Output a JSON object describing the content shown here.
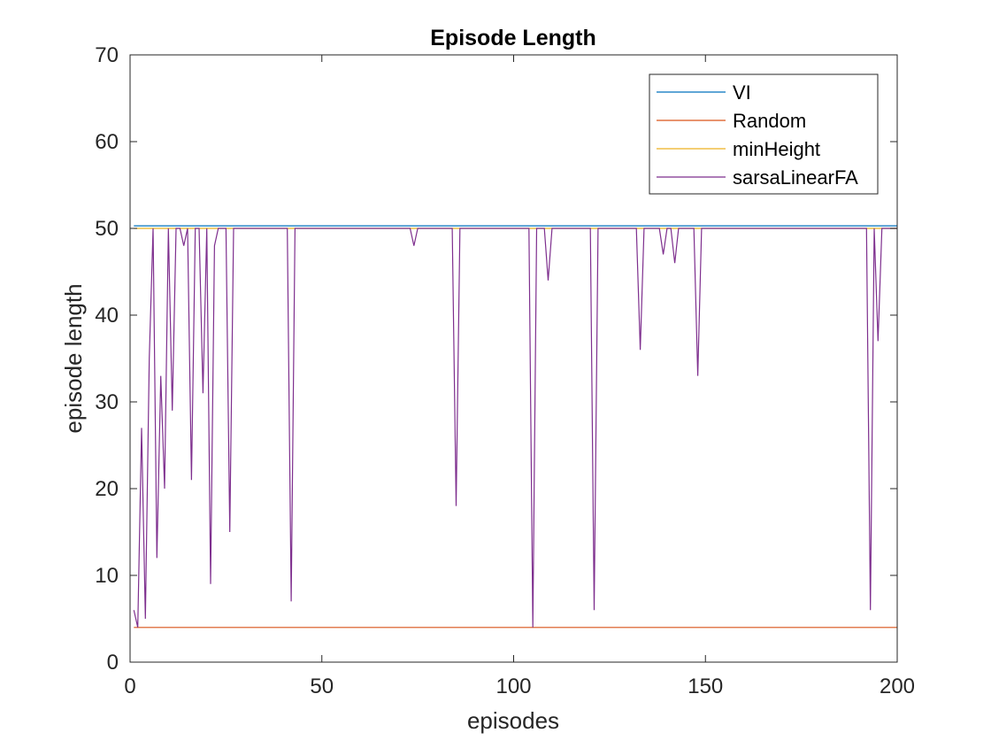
{
  "chart_data": {
    "type": "line",
    "title": "Episode Length",
    "xlabel": "episodes",
    "ylabel": "episode length",
    "xlim": [
      0,
      200
    ],
    "ylim": [
      0,
      70
    ],
    "xticks": [
      0,
      50,
      100,
      150,
      200
    ],
    "yticks": [
      0,
      10,
      20,
      30,
      40,
      50,
      60,
      70
    ],
    "grid": false,
    "legend_position": "top-right",
    "series": [
      {
        "name": "VI",
        "color": "#0072BD",
        "x": [
          1,
          200
        ],
        "y": [
          50.3,
          50.3
        ]
      },
      {
        "name": "Random",
        "color": "#D95319",
        "x": [
          1,
          200
        ],
        "y": [
          4,
          4
        ]
      },
      {
        "name": "minHeight",
        "color": "#EDB120",
        "x": [
          1,
          200
        ],
        "y": [
          50,
          50
        ]
      },
      {
        "name": "sarsaLinearFA",
        "color": "#7E2F8E",
        "x": [
          1,
          2,
          3,
          4,
          5,
          6,
          7,
          8,
          9,
          10,
          11,
          12,
          13,
          14,
          15,
          16,
          17,
          18,
          19,
          20,
          21,
          22,
          23,
          24,
          25,
          26,
          27,
          41,
          42,
          43,
          73,
          74,
          75,
          84,
          85,
          86,
          104,
          105,
          106,
          108,
          109,
          110,
          120,
          121,
          122,
          132,
          133,
          134,
          138,
          139,
          140,
          141,
          142,
          143,
          144,
          147,
          148,
          149,
          192,
          193,
          194,
          195,
          196,
          200
        ],
        "y": [
          6,
          4,
          27,
          5,
          35,
          50,
          12,
          33,
          20,
          50,
          29,
          50,
          50,
          48,
          50,
          21,
          50,
          50,
          31,
          50,
          9,
          48,
          50,
          50,
          50,
          15,
          50,
          50,
          7,
          50,
          50,
          48,
          50,
          50,
          18,
          50,
          50,
          4,
          50,
          50,
          44,
          50,
          50,
          6,
          50,
          50,
          36,
          50,
          50,
          47,
          50,
          50,
          46,
          50,
          50,
          50,
          33,
          50,
          50,
          6,
          50,
          37,
          50,
          50
        ]
      }
    ]
  }
}
